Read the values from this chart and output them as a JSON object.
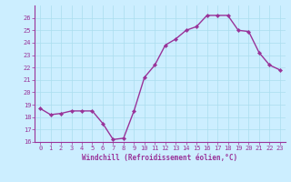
{
  "x": [
    0,
    1,
    2,
    3,
    4,
    5,
    6,
    7,
    8,
    9,
    10,
    11,
    12,
    13,
    14,
    15,
    16,
    17,
    18,
    19,
    20,
    21,
    22,
    23
  ],
  "y": [
    18.7,
    18.2,
    18.3,
    18.5,
    18.5,
    18.5,
    17.5,
    16.2,
    16.3,
    18.5,
    21.2,
    22.2,
    23.8,
    24.3,
    25.0,
    25.3,
    26.2,
    26.2,
    26.2,
    25.0,
    24.9,
    23.2,
    22.2,
    21.8
  ],
  "line_color": "#993399",
  "marker_color": "#993399",
  "bg_color": "#cceeff",
  "grid_color": "#aaddee",
  "axis_color": "#993399",
  "xlabel": "Windchill (Refroidissement éolien,°C)",
  "ylim": [
    16,
    27
  ],
  "yticks": [
    16,
    17,
    18,
    19,
    20,
    21,
    22,
    23,
    24,
    25,
    26
  ],
  "xlim": [
    -0.5,
    23.5
  ],
  "xticks": [
    0,
    1,
    2,
    3,
    4,
    5,
    6,
    7,
    8,
    9,
    10,
    11,
    12,
    13,
    14,
    15,
    16,
    17,
    18,
    19,
    20,
    21,
    22,
    23
  ]
}
